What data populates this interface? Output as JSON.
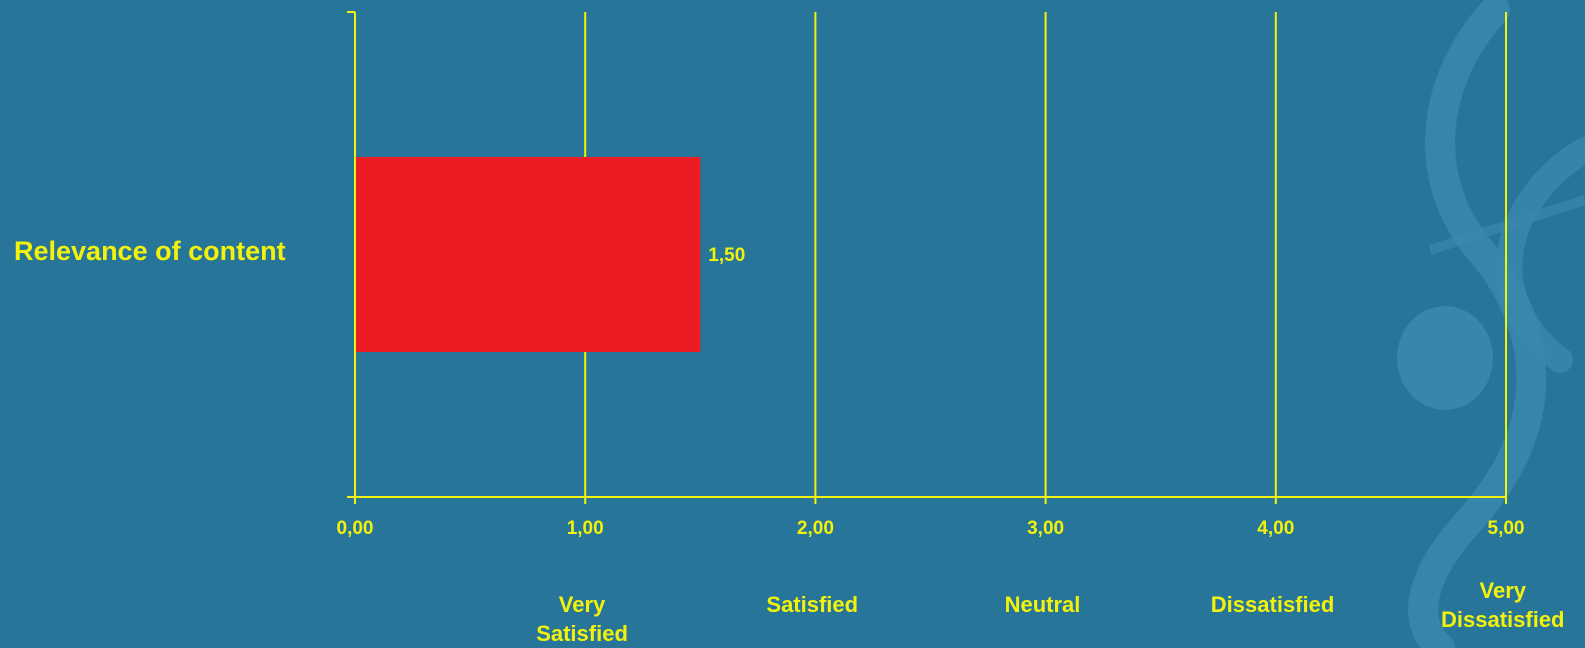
{
  "colors": {
    "background": "#277599",
    "axis": "#f2f20a",
    "text": "#f2f20a",
    "bar": "#ed1c24",
    "watermark": "#3a88ad"
  },
  "chart_data": {
    "type": "bar",
    "orientation": "horizontal",
    "categories": [
      "Relevance of content"
    ],
    "values": [
      1.5
    ],
    "data_labels": [
      "1,50"
    ],
    "xlim": [
      0,
      5
    ],
    "xticks": [
      0,
      1,
      2,
      3,
      4,
      5
    ],
    "xtick_labels": [
      "0,00",
      "1,00",
      "2,00",
      "3,00",
      "4,00",
      "5,00"
    ],
    "grid": "vertical",
    "scale_labels": [
      {
        "x": 1,
        "lines": [
          "Very",
          "Satisfied"
        ]
      },
      {
        "x": 2,
        "lines": [
          "Satisfied"
        ]
      },
      {
        "x": 3,
        "lines": [
          "Neutral"
        ]
      },
      {
        "x": 4,
        "lines": [
          "Dissatisfied"
        ]
      },
      {
        "x": 5,
        "lines": [
          "Very",
          "Dissatisfied"
        ]
      }
    ]
  }
}
